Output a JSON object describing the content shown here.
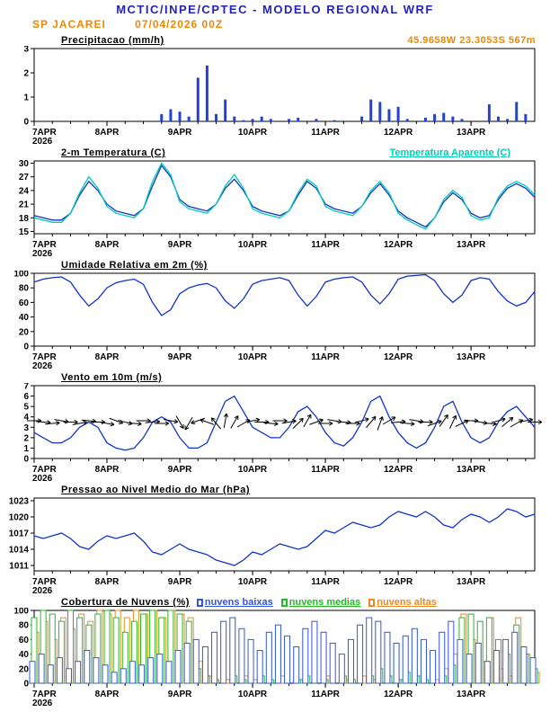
{
  "header": {
    "title": "MCTIC/INPE/CPTEC - MODELO REGIONAL WRF",
    "station": "SP JACAREI",
    "run": "07/04/2026 00Z",
    "location": "45.9658W 23.3053S 567m"
  },
  "colors": {
    "header_blue": "#2323bb",
    "orange": "#ee8800",
    "line_blue": "#1133cc",
    "cyan": "#00ccb8",
    "green": "#22aa22",
    "cloud_blue": "#3355dd",
    "cloud_green": "#22bb22",
    "cloud_orange": "#ee8822",
    "axis_black": "#000000"
  },
  "x_axis": {
    "hours_start": 0,
    "hours_end": 165,
    "minor_tick_step_hours": 6,
    "tick_hours": [
      0,
      24,
      48,
      72,
      96,
      120,
      144
    ],
    "tick_labels": [
      "7APR",
      "8APR",
      "9APR",
      "10APR",
      "11APR",
      "12APR",
      "13APR"
    ],
    "year_label": "2026"
  },
  "chart_data": [
    {
      "type": "bar",
      "title": "Precipitacao (mm/h)",
      "ylim": [
        0,
        3
      ],
      "yticks": [
        0,
        1,
        2,
        3
      ],
      "bar_color": "#2244cc",
      "x_step_hours": 3,
      "values": [
        0,
        0,
        0,
        0,
        0,
        0,
        0,
        0,
        0,
        0,
        0,
        0,
        0,
        0,
        0.3,
        0.5,
        0.4,
        0.2,
        1.8,
        2.3,
        0.3,
        0.9,
        0.2,
        0.05,
        0.1,
        0.2,
        0.1,
        0,
        0.1,
        0.15,
        0,
        0.1,
        0,
        0.05,
        0,
        0,
        0.2,
        0.9,
        0.8,
        0.5,
        0.6,
        0.1,
        0,
        0.15,
        0.3,
        0.35,
        0.2,
        0.1,
        0,
        0,
        0.7,
        0.2,
        0.1,
        0.8,
        0.3,
        0
      ]
    },
    {
      "type": "line",
      "title": "2-m Temperatura (C)",
      "right_label": "Temperatura Aparente (C)",
      "ylim": [
        14.5,
        30.5
      ],
      "yticks": [
        15,
        18,
        21,
        24,
        27,
        30
      ],
      "x_step_hours": 3,
      "series": [
        {
          "name": "2-m Temperatura (C)",
          "color": "#1133cc",
          "values": [
            18.5,
            18,
            17.5,
            17.5,
            19,
            23,
            26,
            24,
            21,
            19.5,
            19,
            18.5,
            20,
            25,
            29.5,
            27,
            22,
            20.5,
            20,
            19.5,
            21,
            24.5,
            26.5,
            24,
            20.5,
            19.5,
            19,
            18.5,
            19.5,
            23,
            26,
            24.5,
            21,
            20,
            19.5,
            19,
            20.5,
            23.5,
            25.5,
            23,
            19.5,
            18,
            17,
            16,
            18,
            21.5,
            23.5,
            22,
            19,
            18,
            18.5,
            22,
            24.5,
            25.5,
            24.5,
            22.5
          ]
        },
        {
          "name": "Temperatura Aparente (C)",
          "color": "#00ccb8",
          "values": [
            18,
            17.5,
            17,
            17,
            19,
            23.5,
            27,
            24.5,
            20.5,
            19,
            18.5,
            18,
            20,
            26,
            30,
            27.5,
            21.5,
            20,
            19.5,
            19,
            21,
            25,
            27.5,
            24.5,
            20,
            19,
            18.5,
            18,
            19.5,
            23.5,
            26.5,
            25,
            20.5,
            19.5,
            19,
            18.5,
            20.5,
            24,
            26,
            23.5,
            19,
            17.5,
            16.5,
            15.5,
            18,
            22,
            24,
            22.5,
            18.5,
            17.5,
            18,
            22.5,
            25,
            26,
            25,
            23
          ]
        }
      ]
    },
    {
      "type": "line",
      "title": "Umidade Relativa em 2m (%)",
      "ylim": [
        0,
        100
      ],
      "yticks": [
        0,
        20,
        40,
        60,
        80,
        100
      ],
      "x_step_hours": 3,
      "series": [
        {
          "name": "Umidade Relativa em 2m (%)",
          "color": "#1133cc",
          "values": [
            88,
            92,
            94,
            95,
            88,
            70,
            55,
            65,
            80,
            87,
            90,
            92,
            85,
            60,
            42,
            50,
            72,
            80,
            84,
            86,
            80,
            62,
            52,
            65,
            85,
            90,
            92,
            94,
            90,
            70,
            55,
            68,
            88,
            92,
            94,
            95,
            88,
            70,
            58,
            72,
            92,
            96,
            97,
            98,
            90,
            72,
            60,
            70,
            90,
            94,
            92,
            75,
            62,
            55,
            60,
            75
          ]
        }
      ]
    },
    {
      "type": "wind",
      "title": "Vento em 10m (m/s)",
      "ylim": [
        0,
        7
      ],
      "yticks": [
        0,
        1,
        2,
        3,
        4,
        5,
        6,
        7
      ],
      "x_step_hours": 3,
      "series": [
        {
          "name": "Vento em 10m (m/s)",
          "color": "#1133cc",
          "values": [
            2.5,
            2,
            1.5,
            1.5,
            2,
            3,
            3.5,
            3,
            1.5,
            1,
            0.8,
            1,
            2,
            3.5,
            4,
            3.5,
            2,
            1,
            1,
            1.5,
            3.5,
            5.5,
            6,
            4.5,
            3,
            2.5,
            2,
            2,
            3,
            4.5,
            5,
            4,
            2.5,
            1.5,
            1.2,
            2,
            3.5,
            5.5,
            6,
            4,
            2.5,
            1.5,
            1,
            1.5,
            3,
            5,
            5.5,
            3.5,
            2,
            1.5,
            2,
            3.5,
            4.5,
            5,
            4,
            3
          ]
        }
      ],
      "barbs": {
        "y_value": 3.5,
        "color": "#000000",
        "rotations_deg": [
          0,
          5,
          -5,
          10,
          0,
          -10,
          5,
          0,
          10,
          20,
          15,
          5,
          0,
          -5,
          0,
          10,
          60,
          120,
          160,
          200,
          230,
          -80,
          -60,
          -30,
          -10,
          0,
          5,
          0,
          -10,
          -45,
          -60,
          -20,
          0,
          10,
          5,
          0,
          -15,
          -50,
          -70,
          -30,
          -5,
          5,
          10,
          0,
          -20,
          -55,
          -65,
          -25,
          0,
          10,
          5,
          -15,
          -40,
          -30,
          -10,
          0
        ]
      }
    },
    {
      "type": "line",
      "title": "Pressao ao Nivel Medio do Mar (hPa)",
      "ylim": [
        1010,
        1023.5
      ],
      "yticks": [
        1011,
        1014,
        1017,
        1020,
        1023
      ],
      "x_step_hours": 3,
      "series": [
        {
          "name": "Pressao ao Nivel Medio do Mar (hPa)",
          "color": "#1133cc",
          "values": [
            1016.5,
            1016,
            1016.5,
            1017,
            1016,
            1014.5,
            1014,
            1015.5,
            1016.5,
            1016,
            1016.5,
            1017,
            1015.5,
            1013.5,
            1013,
            1014,
            1015,
            1014,
            1013.5,
            1013,
            1012,
            1011.5,
            1011,
            1012,
            1013.5,
            1013,
            1014,
            1015,
            1014.5,
            1014,
            1014.5,
            1016,
            1017.5,
            1017,
            1018,
            1019,
            1018.5,
            1018,
            1018.5,
            1020,
            1021,
            1020.5,
            1020,
            1021,
            1020,
            1018.5,
            1018,
            1019.5,
            1020.5,
            1020,
            1019,
            1020,
            1021.5,
            1021,
            1020,
            1020.5
          ]
        }
      ]
    },
    {
      "type": "bar-multi",
      "title": "Cobertura de Nuvens (%)",
      "ylim": [
        0,
        100
      ],
      "yticks": [
        0,
        20,
        40,
        60,
        80,
        100
      ],
      "x_step_hours": 3,
      "legend": [
        {
          "label": "nuvens baixas",
          "color": "#3355dd"
        },
        {
          "label": "nuvens medias",
          "color": "#22bb22"
        },
        {
          "label": "nuvens altas",
          "color": "#ee8822"
        }
      ],
      "series": [
        {
          "name": "nuvens altas",
          "color": "#ee8822",
          "values": [
            70,
            85,
            60,
            90,
            75,
            95,
            85,
            100,
            95,
            100,
            90,
            100,
            95,
            100,
            90,
            100,
            95,
            90,
            30,
            10,
            0,
            5,
            0,
            10,
            5,
            0,
            0,
            10,
            0,
            5,
            0,
            0,
            10,
            0,
            5,
            0,
            10,
            5,
            0,
            0,
            5,
            0,
            10,
            0,
            5,
            20,
            40,
            95,
            60,
            30,
            90,
            20,
            10,
            90,
            40,
            15
          ]
        },
        {
          "name": "nuvens medias",
          "color": "#22bb22",
          "values": [
            90,
            100,
            95,
            85,
            100,
            90,
            80,
            95,
            100,
            90,
            70,
            85,
            95,
            100,
            90,
            100,
            95,
            85,
            20,
            10,
            5,
            0,
            10,
            5,
            0,
            10,
            5,
            0,
            0,
            5,
            10,
            0,
            5,
            0,
            10,
            5,
            0,
            10,
            20,
            10,
            5,
            15,
            10,
            5,
            0,
            10,
            25,
            90,
            95,
            85,
            90,
            60,
            40,
            80,
            40,
            20
          ]
        },
        {
          "name": "nuvens baixas",
          "color": "#3355dd",
          "values": [
            30,
            40,
            25,
            35,
            20,
            30,
            45,
            35,
            25,
            15,
            20,
            30,
            25,
            35,
            40,
            30,
            45,
            55,
            60,
            50,
            70,
            85,
            90,
            75,
            60,
            45,
            70,
            80,
            65,
            50,
            75,
            85,
            70,
            55,
            40,
            60,
            80,
            90,
            85,
            70,
            55,
            65,
            75,
            60,
            45,
            70,
            85,
            60,
            40,
            55,
            30,
            45,
            60,
            70,
            50,
            35
          ]
        }
      ]
    }
  ]
}
